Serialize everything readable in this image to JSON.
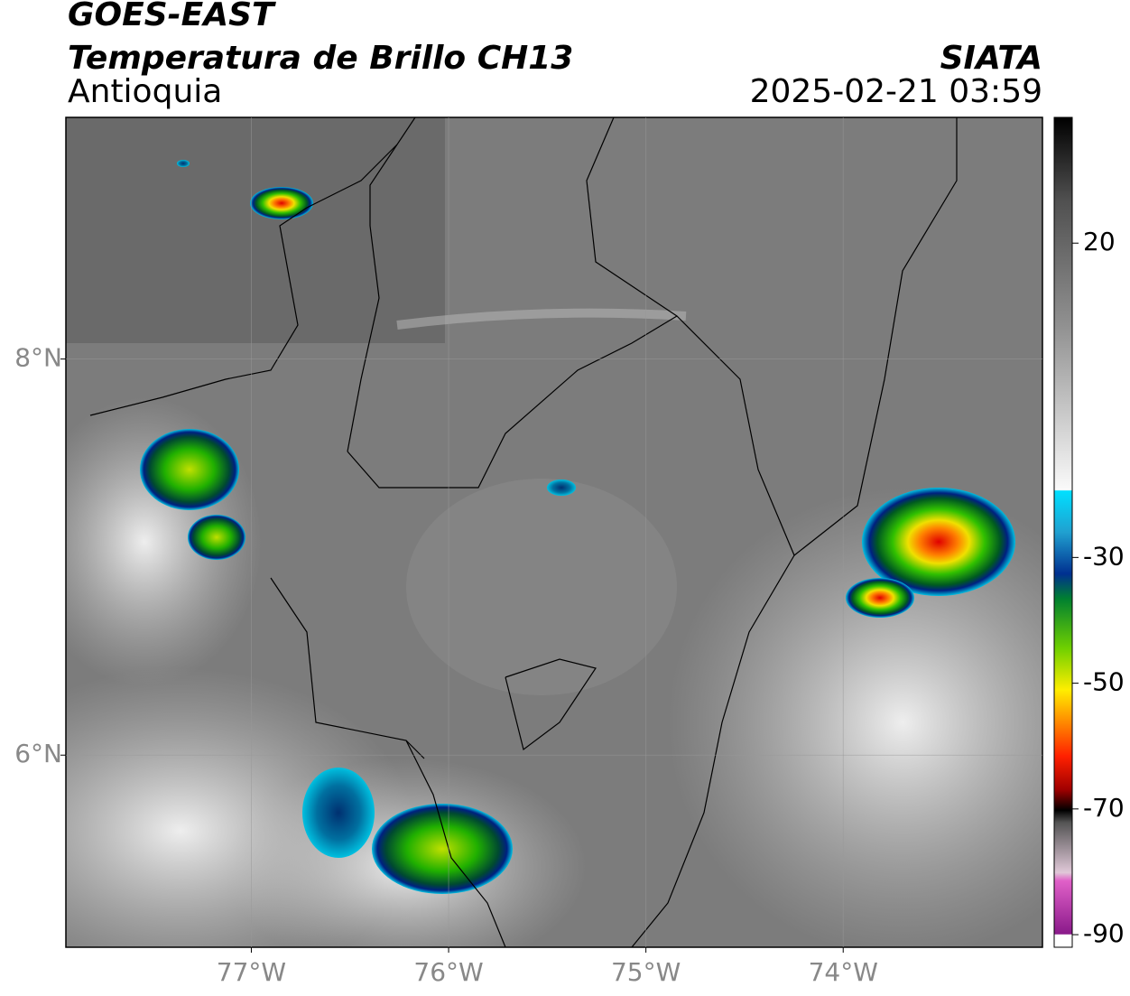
{
  "header": {
    "satellite": "GOES-EAST",
    "product": "Temperatura de Brillo CH13",
    "region": "Antioquia",
    "source": "SIATA",
    "datetime": "2025-02-21 03:59"
  },
  "map": {
    "lon_range": [
      -77.94,
      -72.99
    ],
    "lat_range": [
      5.03,
      9.22
    ],
    "lon_ticks": [
      {
        "value": -77,
        "label": "77°W"
      },
      {
        "value": -76,
        "label": "76°W"
      },
      {
        "value": -75,
        "label": "75°W"
      },
      {
        "value": -74,
        "label": "74°W"
      }
    ],
    "lat_ticks": [
      {
        "value": 8,
        "label": "8°N"
      },
      {
        "value": 6,
        "label": "6°N"
      }
    ],
    "grid": true
  },
  "colorbar": {
    "range": [
      -92,
      40
    ],
    "ticks": [
      20,
      -30,
      -50,
      -70,
      -90
    ]
  }
}
